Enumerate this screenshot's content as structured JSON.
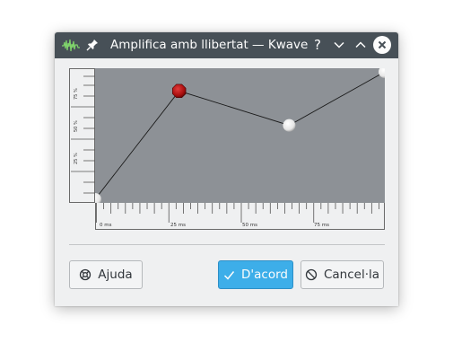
{
  "window": {
    "title": "Amplifica amb llibertat — Kwave",
    "app_icon": "kwave-waveform-icon",
    "controls": [
      "help-icon",
      "minimize-icon",
      "maximize-icon",
      "close-icon"
    ],
    "help_glyph": "?"
  },
  "curve_editor": {
    "y_axis_labels": [
      "75 %",
      "50 %",
      "25 %"
    ],
    "x_axis_labels": [
      "0 ms",
      "25 ms",
      "50 ms",
      "75 ms"
    ],
    "points": [
      {
        "time_ms": 0,
        "level_pct": 0,
        "style": "white"
      },
      {
        "time_ms": 29,
        "level_pct": 85,
        "style": "red-selected"
      },
      {
        "time_ms": 67,
        "level_pct": 58,
        "style": "white"
      },
      {
        "time_ms": 100,
        "level_pct": 100,
        "style": "white"
      }
    ],
    "colors": {
      "background": "#8d9196",
      "line": "#1a1a1a",
      "selected": "#b01010"
    }
  },
  "buttons": {
    "help_label": "Ajuda",
    "ok_label": "D'acord",
    "cancel_label": "Cancel·la"
  },
  "colors": {
    "accent": "#3daee9",
    "titlebar": "#475057",
    "window_bg": "#eff0f1"
  }
}
